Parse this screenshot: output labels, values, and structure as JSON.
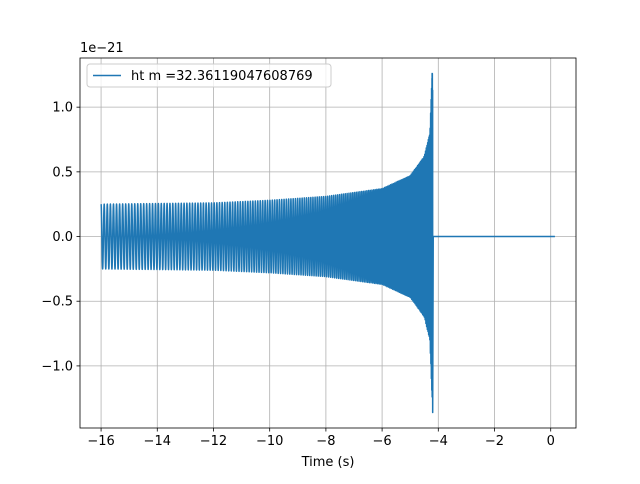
{
  "chart_data": {
    "type": "line",
    "xlabel": "Time (s)",
    "ylabel": "",
    "y_offset_text": "1e−21",
    "y_scale": 1e-21,
    "xlim": [
      -16.75,
      0.9
    ],
    "ylim": [
      -1.48,
      1.38
    ],
    "x_ticks": [
      -16,
      -14,
      -12,
      -10,
      -8,
      -6,
      -4,
      -2,
      0
    ],
    "x_tick_labels": [
      "−16",
      "−14",
      "−12",
      "−10",
      "−8",
      "−6",
      "−4",
      "−2",
      "0"
    ],
    "y_ticks": [
      -1.0,
      -0.5,
      0.0,
      0.5,
      1.0
    ],
    "y_tick_labels": [
      "−1.0",
      "−0.5",
      "0.0",
      "0.5",
      "1.0"
    ],
    "grid": true,
    "legend_position": "top-left",
    "series": [
      {
        "name": "ht m =32.36119047608769",
        "color": "#1f77b4",
        "signal": "gravitational-wave chirp",
        "t_start": -16.0,
        "t_merger": -4.2,
        "t_end": 0.15,
        "initial_amplitude": 0.25,
        "peak_amplitude_upper": 1.26,
        "peak_amplitude_lower": -1.36,
        "envelope": [
          {
            "t": -16.0,
            "amp": 0.25
          },
          {
            "t": -14.0,
            "amp": 0.255
          },
          {
            "t": -12.0,
            "amp": 0.26
          },
          {
            "t": -10.0,
            "amp": 0.28
          },
          {
            "t": -8.0,
            "amp": 0.31
          },
          {
            "t": -6.0,
            "amp": 0.37
          },
          {
            "t": -5.0,
            "amp": 0.47
          },
          {
            "t": -4.5,
            "amp": 0.62
          },
          {
            "t": -4.3,
            "amp": 0.8
          },
          {
            "t": -4.22,
            "amp": 1.26
          }
        ],
        "post_merger_value": 0.0
      }
    ]
  }
}
